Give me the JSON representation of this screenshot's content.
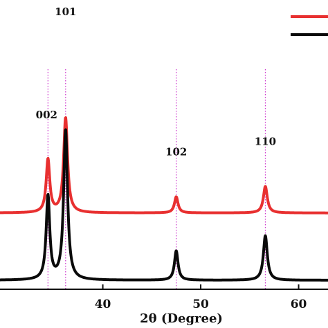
{
  "chart_data": {
    "type": "line",
    "xlabel": "2θ (Degree)",
    "ylabel": "",
    "xlim": [
      29.5,
      63
    ],
    "x_ticks": [
      {
        "value": 40,
        "label": "40"
      },
      {
        "value": 50,
        "label": "50"
      },
      {
        "value": 60,
        "label": "60"
      }
    ],
    "y_ticks_shown": false,
    "grid": false,
    "legend": {
      "placement": "top-right",
      "entries_visible": [
        "red line sample",
        "black line sample"
      ]
    },
    "peak_labels": [
      {
        "label": "002",
        "x": 34.4
      },
      {
        "label": "101",
        "x": 36.2
      },
      {
        "label": "102",
        "x": 47.5
      },
      {
        "label": "110",
        "x": 56.6
      }
    ],
    "reference_line_color": "#cc33cc",
    "series": [
      {
        "color": "#e83030",
        "baseline": 0.71,
        "peaks": [
          {
            "x": 34.4,
            "height": 0.56,
            "width": 0.22
          },
          {
            "x": 36.2,
            "height": 1.0,
            "width": 0.24
          },
          {
            "x": 47.5,
            "height": 0.17,
            "width": 0.22
          },
          {
            "x": 56.6,
            "height": 0.28,
            "width": 0.24
          }
        ]
      },
      {
        "color": "#0a0a0a",
        "baseline": 0.0,
        "peaks": [
          {
            "x": 34.4,
            "height": 0.88,
            "width": 0.22
          },
          {
            "x": 36.2,
            "height": 1.58,
            "width": 0.24
          },
          {
            "x": 47.5,
            "height": 0.31,
            "width": 0.22
          },
          {
            "x": 56.6,
            "height": 0.47,
            "width": 0.24
          }
        ]
      }
    ]
  }
}
